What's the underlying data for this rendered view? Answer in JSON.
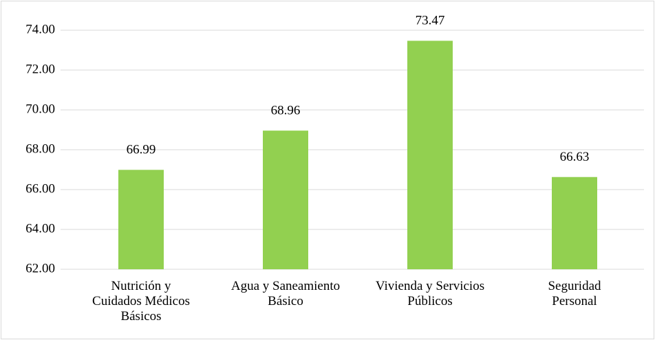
{
  "chart_data": {
    "type": "bar",
    "categories": [
      "Nutrición y Cuidados Médicos Básicos",
      "Agua y Saneamiento Básico",
      "Vivienda y Servicios Públicos",
      "Seguridad Personal"
    ],
    "values": [
      66.99,
      68.96,
      73.47,
      66.63
    ],
    "color": "#92d050",
    "ylim": [
      62,
      74
    ],
    "yticks": [
      {
        "value": 62,
        "label": "62.00"
      },
      {
        "value": 64,
        "label": "64.00"
      },
      {
        "value": 66,
        "label": "66.00"
      },
      {
        "value": 68,
        "label": "68.00"
      },
      {
        "value": 70,
        "label": "70.00"
      },
      {
        "value": 72,
        "label": "72.00"
      },
      {
        "value": 74,
        "label": "74.00"
      }
    ],
    "grid": true
  }
}
